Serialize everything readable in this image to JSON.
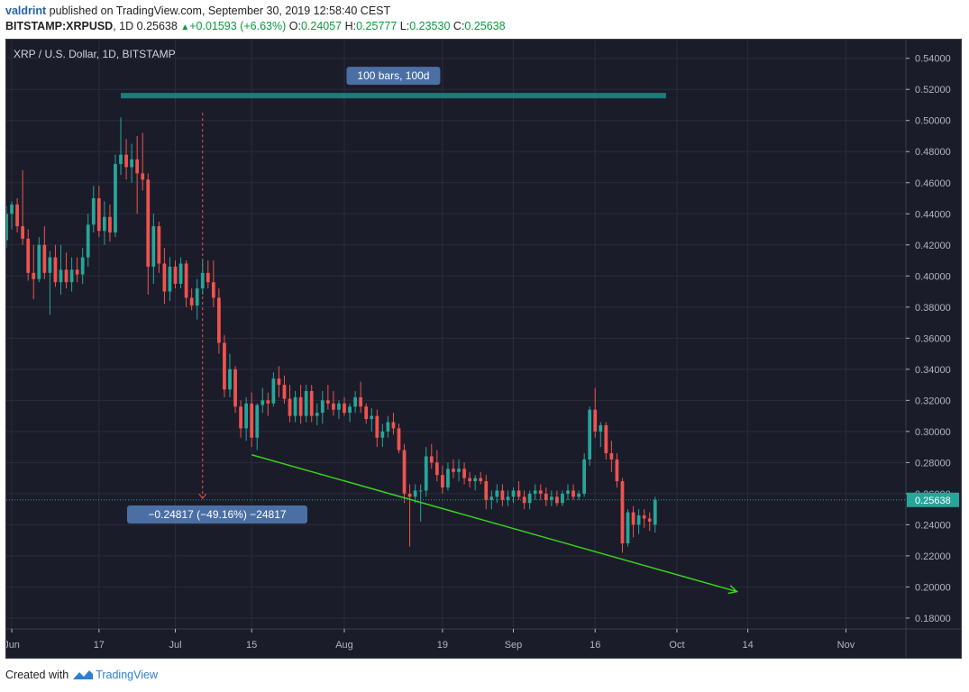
{
  "header": {
    "user": "valdrint",
    "published_text": "published on TradingView.com, September 30, 2019 12:58:40 CEST",
    "symbol": "BITSTAMP:XRPUSD",
    "interval": ", 1D",
    "last": "0.25638",
    "change_arrow": "▲",
    "change": "+0.01593 (+6.63%)",
    "o_label": "O:",
    "o": "0.24057",
    "h_label": "H:",
    "h": "0.25777",
    "l_label": "L:",
    "l": "0.23530",
    "c_label": "C:",
    "c": "0.25638"
  },
  "legend": "XRP / U.S. Dollar, 1D, BITSTAMP",
  "price_label": "0.25638",
  "annotations": {
    "range_label": "100 bars, 100d",
    "measure_label": "−0.24817 (−49.16%) −24817"
  },
  "footer": {
    "created_with": "Created with",
    "brand": "TradingView"
  },
  "colors": {
    "background": "#1b1c29",
    "up": "#26a69a",
    "down": "#ef5350",
    "trendline": "#39d11f",
    "price_line": "#26a69a",
    "label_bg": "#4a6fa5"
  },
  "chart_data": {
    "type": "candlestick",
    "ylim": [
      0.173,
      0.552
    ],
    "y_ticks": [
      0.54,
      0.52,
      0.5,
      0.48,
      0.46,
      0.44,
      0.42,
      0.4,
      0.38,
      0.36,
      0.34,
      0.32,
      0.3,
      0.28,
      0.26,
      0.24,
      0.22,
      0.2,
      0.18
    ],
    "y_tick_labels": [
      "0.54000",
      "0.52000",
      "0.50000",
      "0.48000",
      "0.46000",
      "0.44000",
      "0.42000",
      "0.40000",
      "0.38000",
      "0.36000",
      "0.34000",
      "0.32000",
      "0.30000",
      "0.28000",
      "0.26000",
      "0.24000",
      "0.22000",
      "0.20000",
      "0.18000"
    ],
    "x_ticks": [
      {
        "label": "Jun",
        "day": 0
      },
      {
        "label": "17",
        "day": 16
      },
      {
        "label": "Jul",
        "day": 30
      },
      {
        "label": "15",
        "day": 44
      },
      {
        "label": "Aug",
        "day": 61
      },
      {
        "label": "19",
        "day": 79
      },
      {
        "label": "Sep",
        "day": 92
      },
      {
        "label": "16",
        "day": 107
      },
      {
        "label": "Oct",
        "day": 122
      },
      {
        "label": "14",
        "day": 135
      },
      {
        "label": "Nov",
        "day": 153
      }
    ],
    "x_range_days": [
      -1,
      164
    ],
    "candles": [
      [
        0.423,
        0.445,
        0.418,
        0.44
      ],
      [
        0.44,
        0.448,
        0.43,
        0.446
      ],
      [
        0.446,
        0.45,
        0.428,
        0.432
      ],
      [
        0.432,
        0.468,
        0.42,
        0.424
      ],
      [
        0.424,
        0.43,
        0.397,
        0.402
      ],
      [
        0.402,
        0.42,
        0.385,
        0.398
      ],
      [
        0.398,
        0.425,
        0.396,
        0.42
      ],
      [
        0.42,
        0.432,
        0.398,
        0.402
      ],
      [
        0.402,
        0.416,
        0.375,
        0.412
      ],
      [
        0.412,
        0.42,
        0.393,
        0.396
      ],
      [
        0.396,
        0.42,
        0.388,
        0.404
      ],
      [
        0.404,
        0.415,
        0.392,
        0.396
      ],
      [
        0.396,
        0.412,
        0.39,
        0.404
      ],
      [
        0.404,
        0.412,
        0.396,
        0.401
      ],
      [
        0.401,
        0.418,
        0.395,
        0.412
      ],
      [
        0.412,
        0.44,
        0.406,
        0.433
      ],
      [
        0.433,
        0.458,
        0.428,
        0.45
      ],
      [
        0.45,
        0.458,
        0.425,
        0.429
      ],
      [
        0.429,
        0.448,
        0.42,
        0.438
      ],
      [
        0.438,
        0.446,
        0.422,
        0.428
      ],
      [
        0.428,
        0.478,
        0.425,
        0.472
      ],
      [
        0.472,
        0.502,
        0.465,
        0.478
      ],
      [
        0.478,
        0.488,
        0.462,
        0.47
      ],
      [
        0.47,
        0.485,
        0.46,
        0.475
      ],
      [
        0.475,
        0.49,
        0.44,
        0.466
      ],
      [
        0.466,
        0.492,
        0.455,
        0.462
      ],
      [
        0.462,
        0.466,
        0.388,
        0.406
      ],
      [
        0.406,
        0.44,
        0.395,
        0.432
      ],
      [
        0.432,
        0.435,
        0.402,
        0.408
      ],
      [
        0.408,
        0.418,
        0.382,
        0.39
      ],
      [
        0.39,
        0.412,
        0.384,
        0.406
      ],
      [
        0.406,
        0.41,
        0.392,
        0.395
      ],
      [
        0.395,
        0.412,
        0.392,
        0.408
      ],
      [
        0.408,
        0.41,
        0.38,
        0.386
      ],
      [
        0.386,
        0.392,
        0.378,
        0.381
      ],
      [
        0.381,
        0.398,
        0.372,
        0.392
      ],
      [
        0.392,
        0.41,
        0.388,
        0.402
      ],
      [
        0.402,
        0.41,
        0.392,
        0.396
      ],
      [
        0.396,
        0.41,
        0.38,
        0.386
      ],
      [
        0.386,
        0.392,
        0.35,
        0.357
      ],
      [
        0.357,
        0.362,
        0.322,
        0.327
      ],
      [
        0.327,
        0.35,
        0.322,
        0.34
      ],
      [
        0.34,
        0.342,
        0.312,
        0.316
      ],
      [
        0.316,
        0.32,
        0.296,
        0.302
      ],
      [
        0.302,
        0.322,
        0.294,
        0.318
      ],
      [
        0.318,
        0.325,
        0.29,
        0.296
      ],
      [
        0.296,
        0.318,
        0.288,
        0.317
      ],
      [
        0.317,
        0.328,
        0.312,
        0.32
      ],
      [
        0.32,
        0.325,
        0.31,
        0.318
      ],
      [
        0.318,
        0.338,
        0.316,
        0.334
      ],
      [
        0.334,
        0.342,
        0.322,
        0.33
      ],
      [
        0.33,
        0.336,
        0.318,
        0.321
      ],
      [
        0.321,
        0.33,
        0.306,
        0.31
      ],
      [
        0.31,
        0.326,
        0.306,
        0.322
      ],
      [
        0.322,
        0.33,
        0.305,
        0.31
      ],
      [
        0.31,
        0.33,
        0.306,
        0.326
      ],
      [
        0.326,
        0.33,
        0.306,
        0.31
      ],
      [
        0.31,
        0.318,
        0.304,
        0.312
      ],
      [
        0.312,
        0.326,
        0.305,
        0.32
      ],
      [
        0.32,
        0.33,
        0.314,
        0.318
      ],
      [
        0.318,
        0.326,
        0.31,
        0.314
      ],
      [
        0.314,
        0.32,
        0.308,
        0.318
      ],
      [
        0.318,
        0.322,
        0.31,
        0.312
      ],
      [
        0.312,
        0.318,
        0.306,
        0.316
      ],
      [
        0.316,
        0.326,
        0.312,
        0.322
      ],
      [
        0.322,
        0.332,
        0.312,
        0.316
      ],
      [
        0.316,
        0.318,
        0.305,
        0.308
      ],
      [
        0.308,
        0.315,
        0.3,
        0.31
      ],
      [
        0.31,
        0.314,
        0.29,
        0.296
      ],
      [
        0.296,
        0.305,
        0.29,
        0.3
      ],
      [
        0.3,
        0.31,
        0.296,
        0.306
      ],
      [
        0.306,
        0.312,
        0.298,
        0.302
      ],
      [
        0.302,
        0.305,
        0.286,
        0.288
      ],
      [
        0.288,
        0.292,
        0.254,
        0.26
      ],
      [
        0.26,
        0.266,
        0.226,
        0.258
      ],
      [
        0.258,
        0.266,
        0.254,
        0.262
      ],
      [
        0.262,
        0.266,
        0.242,
        0.262
      ],
      [
        0.262,
        0.29,
        0.258,
        0.284
      ],
      [
        0.284,
        0.292,
        0.276,
        0.28
      ],
      [
        0.28,
        0.288,
        0.268,
        0.272
      ],
      [
        0.272,
        0.278,
        0.26,
        0.264
      ],
      [
        0.264,
        0.28,
        0.262,
        0.276
      ],
      [
        0.276,
        0.282,
        0.27,
        0.274
      ],
      [
        0.274,
        0.282,
        0.268,
        0.276
      ],
      [
        0.276,
        0.28,
        0.266,
        0.27
      ],
      [
        0.27,
        0.274,
        0.264,
        0.268
      ],
      [
        0.268,
        0.272,
        0.262,
        0.27
      ],
      [
        0.27,
        0.274,
        0.266,
        0.268
      ],
      [
        0.268,
        0.272,
        0.25,
        0.256
      ],
      [
        0.256,
        0.262,
        0.25,
        0.258
      ],
      [
        0.258,
        0.266,
        0.254,
        0.262
      ],
      [
        0.262,
        0.266,
        0.252,
        0.256
      ],
      [
        0.256,
        0.262,
        0.252,
        0.258
      ],
      [
        0.258,
        0.264,
        0.254,
        0.262
      ],
      [
        0.262,
        0.268,
        0.256,
        0.258
      ],
      [
        0.258,
        0.262,
        0.25,
        0.254
      ],
      [
        0.254,
        0.262,
        0.25,
        0.26
      ],
      [
        0.26,
        0.266,
        0.256,
        0.262
      ],
      [
        0.262,
        0.266,
        0.256,
        0.26
      ],
      [
        0.26,
        0.264,
        0.252,
        0.256
      ],
      [
        0.256,
        0.262,
        0.252,
        0.258
      ],
      [
        0.258,
        0.262,
        0.252,
        0.254
      ],
      [
        0.254,
        0.262,
        0.252,
        0.26
      ],
      [
        0.26,
        0.266,
        0.256,
        0.262
      ],
      [
        0.262,
        0.266,
        0.256,
        0.258
      ],
      [
        0.258,
        0.262,
        0.256,
        0.26
      ],
      [
        0.26,
        0.286,
        0.258,
        0.282
      ],
      [
        0.282,
        0.316,
        0.278,
        0.314
      ],
      [
        0.314,
        0.328,
        0.296,
        0.3
      ],
      [
        0.3,
        0.306,
        0.29,
        0.304
      ],
      [
        0.304,
        0.306,
        0.282,
        0.286
      ],
      [
        0.286,
        0.294,
        0.274,
        0.282
      ],
      [
        0.282,
        0.286,
        0.264,
        0.268
      ],
      [
        0.268,
        0.27,
        0.222,
        0.228
      ],
      [
        0.228,
        0.25,
        0.226,
        0.248
      ],
      [
        0.248,
        0.252,
        0.232,
        0.24
      ],
      [
        0.24,
        0.25,
        0.234,
        0.246
      ],
      [
        0.246,
        0.25,
        0.238,
        0.244
      ],
      [
        0.244,
        0.248,
        0.236,
        0.242
      ],
      [
        0.24,
        0.258,
        0.235,
        0.256
      ]
    ],
    "candle_start_day": -1,
    "drawings": {
      "trendline": {
        "from": [
          44,
          0.285
        ],
        "to": [
          133,
          0.197
        ]
      },
      "range_bar": {
        "from_day": 20,
        "to_day": 120,
        "price": 0.516
      },
      "measure_line": {
        "day": 35,
        "from_price": 0.505,
        "to_price": 0.257
      }
    }
  }
}
